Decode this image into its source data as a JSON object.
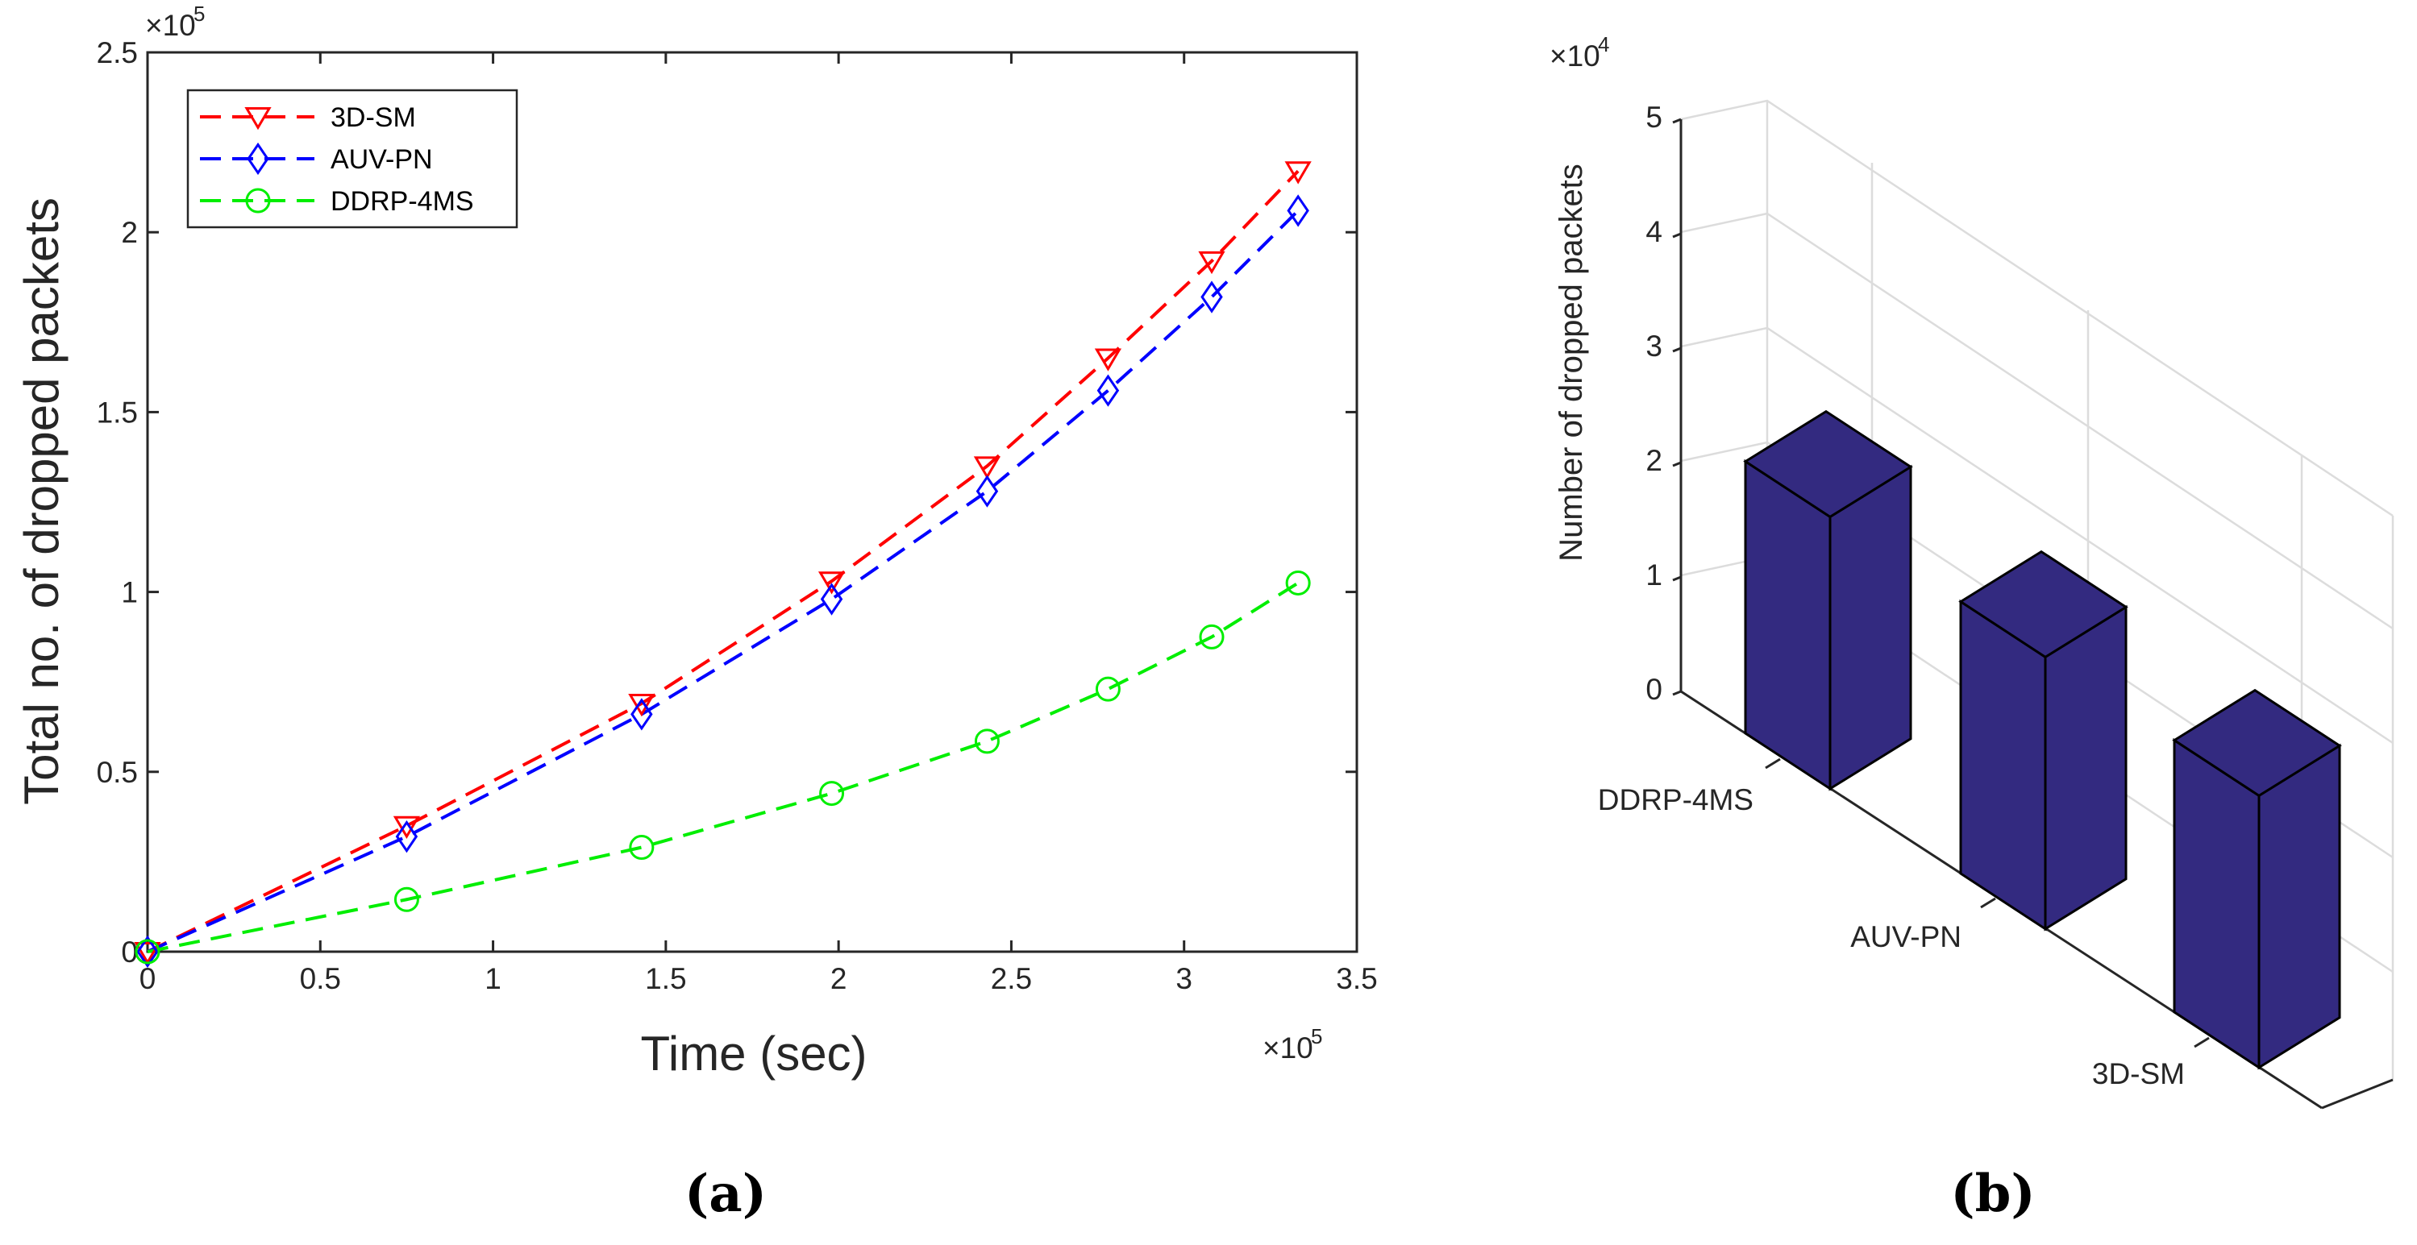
{
  "chart_data": [
    {
      "type": "line",
      "panel": "a",
      "caption": "(a)",
      "xlabel": "Time (sec)",
      "ylabel": "Total no. of  dropped packets",
      "x_multiplier": "×10",
      "x_exponent": "5",
      "y_multiplier": "×10",
      "y_exponent": "5",
      "xlim": [
        0,
        3.5
      ],
      "ylim": [
        0,
        2.5
      ],
      "x_ticks": [
        "0",
        "0.5",
        "1",
        "1.5",
        "2",
        "2.5",
        "3",
        "3.5"
      ],
      "y_ticks": [
        "0",
        "0.5",
        "1",
        "1.5",
        "2",
        "2.5"
      ],
      "x": [
        0,
        0.75,
        1.43,
        1.98,
        2.43,
        2.78,
        3.08,
        3.33
      ],
      "series": [
        {
          "name": "3D-SM",
          "color": "#ff0000",
          "marker": "triangle-down",
          "values": [
            0,
            0.35,
            0.69,
            1.03,
            1.35,
            1.65,
            1.92,
            2.17
          ]
        },
        {
          "name": "AUV-PN",
          "color": "#0000ff",
          "marker": "diamond",
          "values": [
            0,
            0.32,
            0.66,
            0.98,
            1.28,
            1.56,
            1.82,
            2.06
          ]
        },
        {
          "name": "DDRP-4MS",
          "color": "#00ee00",
          "marker": "circle",
          "values": [
            0,
            0.145,
            0.29,
            0.44,
            0.585,
            0.73,
            0.875,
            1.025
          ]
        }
      ],
      "legend_position": "top-left"
    },
    {
      "type": "bar",
      "panel": "b",
      "caption": "(b)",
      "style": "3d",
      "ylabel": "Number of dropped packets",
      "y_multiplier": "×10",
      "y_exponent": "4",
      "ylim": [
        0,
        5
      ],
      "y_ticks": [
        "0",
        "1",
        "2",
        "3",
        "4",
        "5"
      ],
      "categories": [
        "DDRP-4MS",
        "AUV-PN",
        "3D-SM"
      ],
      "values": [
        2.2,
        2.2,
        2.2
      ],
      "color": "#332a80"
    }
  ]
}
